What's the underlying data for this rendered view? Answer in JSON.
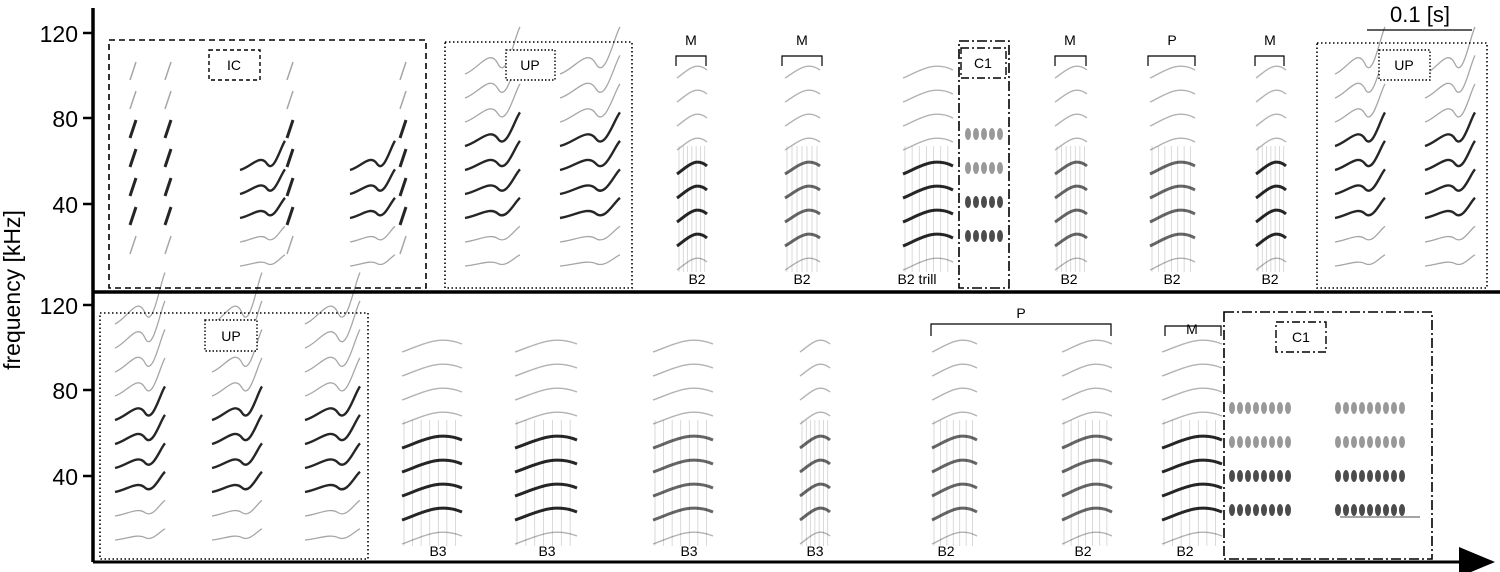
{
  "y_axis": {
    "title": "frequency [kHz]",
    "top_ticks": [
      "120",
      "80",
      "40"
    ],
    "bottom_ticks": [
      "120",
      "80",
      "40"
    ]
  },
  "scale_bar": {
    "label": "0.1 [s]"
  },
  "top_row": {
    "boxes": [
      {
        "id": "ic",
        "label": "IC",
        "style": "dashed"
      },
      {
        "id": "up1",
        "label": "UP",
        "style": "dotted"
      },
      {
        "id": "c1",
        "label": "C1",
        "style": "dashdot"
      },
      {
        "id": "up2",
        "label": "UP",
        "style": "dotted"
      }
    ],
    "brackets": [
      "M",
      "M",
      "M",
      "P",
      "M"
    ],
    "syllable_labels": [
      "B2",
      "B2",
      "B2 trill",
      "B2",
      "B2",
      "B2"
    ]
  },
  "bottom_row": {
    "boxes": [
      {
        "id": "up3",
        "label": "UP",
        "style": "dotted"
      },
      {
        "id": "c1b",
        "label": "C1",
        "style": "dashdot"
      }
    ],
    "brackets": [
      "P",
      "M"
    ],
    "syllable_labels": [
      "B3",
      "B3",
      "B3",
      "B3",
      "B2",
      "B2",
      "B2"
    ]
  },
  "colors": {
    "ink": "#000000",
    "background": "#ffffff"
  }
}
